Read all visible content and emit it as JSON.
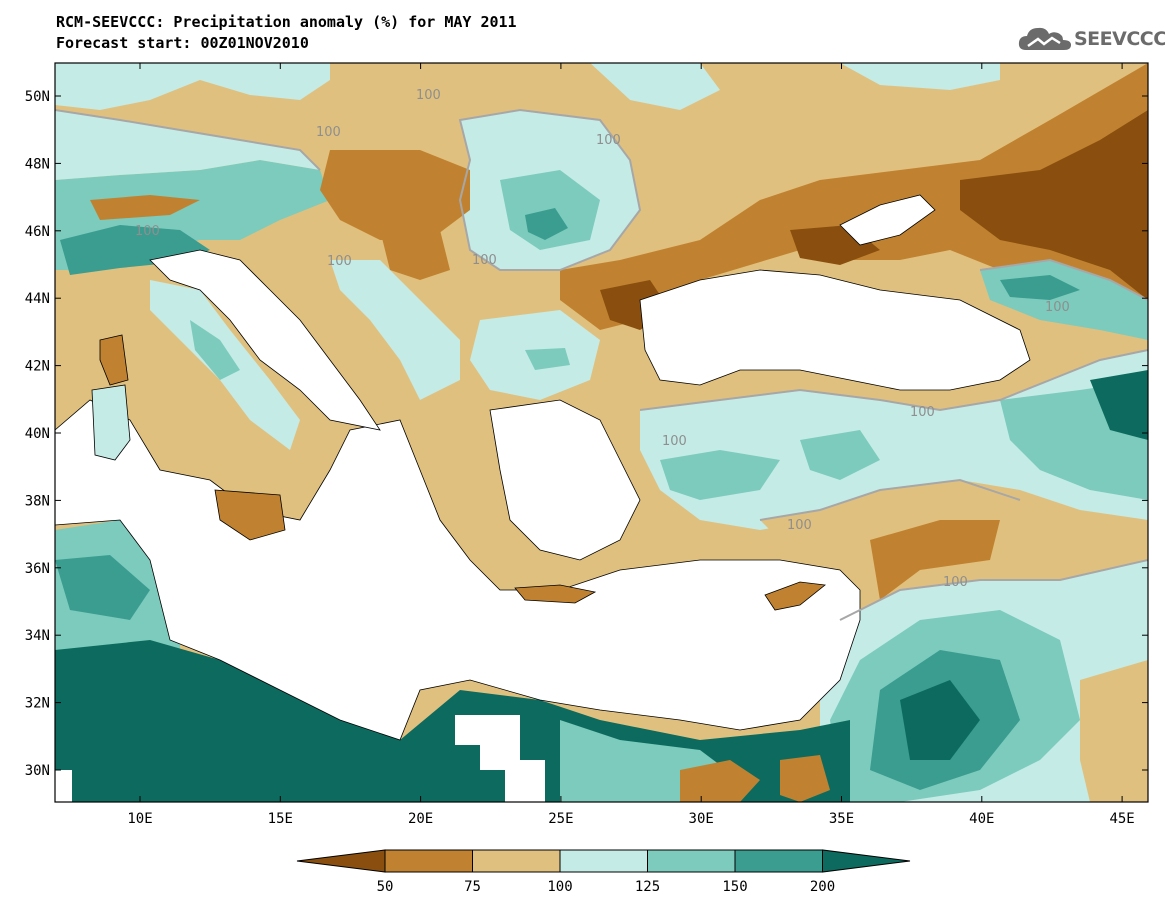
{
  "title_line1": "RCM-SEEVCCC: Precipitation anomaly (%) for MAY 2011",
  "title_line2": "Forecast start: 00Z01NOV2010",
  "logo_text": "SEEVCCC",
  "lat_labels": [
    "50N",
    "48N",
    "46N",
    "44N",
    "42N",
    "40N",
    "38N",
    "36N",
    "34N",
    "32N",
    "30N"
  ],
  "lon_labels": [
    "10E",
    "15E",
    "20E",
    "25E",
    "30E",
    "35E",
    "40E",
    "45E"
  ],
  "contour_labels": [
    "100",
    "100",
    "100",
    "100",
    "100",
    "100",
    "100",
    "100",
    "100",
    "100",
    "100"
  ],
  "colorbar": {
    "ticks": [
      "50",
      "75",
      "100",
      "125",
      "150",
      "200"
    ],
    "colors": [
      "#8a4f0f",
      "#c08230",
      "#e0c07e",
      "#c4ebe6",
      "#7ccbbd",
      "#3a9d90",
      "#0c6b5e"
    ]
  },
  "colors": {
    "land_default": "#e0c07e",
    "sea": "#ffffff"
  }
}
